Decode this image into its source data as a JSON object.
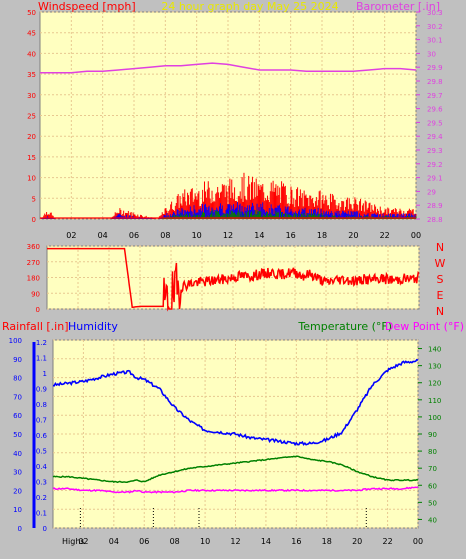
{
  "title": "24 hour graph day   May 25 2024",
  "colors": {
    "background": "#c0c0c0",
    "plot_bg": "#ffffc0",
    "grid": "#e8c890",
    "wind": "#ff0000",
    "gust": "#0000ff",
    "avg": "#008000",
    "baro": "#e040e0",
    "humidity": "#0000ff",
    "temp": "#008000",
    "dew": "#ff00ff",
    "rain": "#ff0000"
  },
  "chart_data": [
    {
      "type": "bar",
      "id": "wind-baro",
      "left_axis_label": "Windspeed [mph]",
      "right_axis_label": "Barometer [.in]",
      "ylim_left": [
        0,
        50
      ],
      "left_ticks": [
        0,
        5,
        10,
        15,
        20,
        25,
        30,
        35,
        40,
        45,
        50
      ],
      "ylim_right": [
        28.8,
        30.3
      ],
      "right_ticks": [
        "28.8",
        "28.9",
        "29",
        "29.1",
        "29.2",
        "29.3",
        "29.4",
        "29.5",
        "29.6",
        "29.7",
        "29.8",
        "29.9",
        "30",
        "30.1",
        "30.2",
        "30.3"
      ],
      "x_ticks": [
        "02",
        "04",
        "06",
        "08",
        "10",
        "12",
        "14",
        "16",
        "18",
        "20",
        "22",
        "00"
      ],
      "barometer": {
        "x": [
          0,
          1,
          2,
          3,
          4,
          5,
          6,
          7,
          8,
          9,
          10,
          11,
          12,
          13,
          14,
          15,
          16,
          17,
          18,
          19,
          20,
          21,
          22,
          23,
          24
        ],
        "values": [
          29.86,
          29.86,
          29.86,
          29.87,
          29.87,
          29.88,
          29.89,
          29.9,
          29.91,
          29.91,
          29.92,
          29.93,
          29.92,
          29.9,
          29.88,
          29.88,
          29.88,
          29.87,
          29.87,
          29.87,
          29.87,
          29.88,
          29.89,
          29.89,
          29.88
        ]
      },
      "wind_envelope": {
        "hours": [
          0,
          0.5,
          1,
          4.5,
          5,
          7.5,
          8,
          9,
          10,
          11,
          12,
          13,
          14,
          15,
          16,
          17,
          18,
          19,
          20,
          21,
          22,
          23,
          24
        ],
        "wind": [
          0,
          2,
          0,
          0,
          2,
          0,
          2,
          5,
          6,
          7,
          7,
          8,
          7,
          7,
          6,
          5,
          5,
          4,
          4,
          3,
          2,
          2,
          2
        ],
        "gust": [
          0,
          0.5,
          0,
          0,
          1,
          0,
          1,
          2,
          2.5,
          3,
          3,
          3,
          3,
          2.5,
          2.5,
          2,
          2,
          1.5,
          1.5,
          1,
          1,
          1,
          1
        ],
        "avg": [
          0,
          0,
          0,
          0,
          0,
          0,
          0.5,
          1,
          1,
          1.5,
          1.5,
          1.5,
          1.5,
          1.5,
          1,
          1,
          1,
          0.5,
          0.5,
          0.5,
          0.5,
          0.5,
          0.5
        ]
      }
    },
    {
      "type": "line",
      "id": "wind-direction",
      "ylim": [
        0,
        360
      ],
      "y_ticks": [
        0,
        90,
        180,
        270,
        360
      ],
      "compass_labels": [
        "N",
        "W",
        "S",
        "E",
        "N"
      ],
      "x": [
        0,
        0.5,
        1,
        1.5,
        2,
        2.5,
        3,
        3.5,
        4,
        4.5,
        5,
        5.5,
        6,
        6.5,
        7,
        7.5,
        8,
        8.5,
        9,
        9.5,
        10,
        10.5,
        11,
        11.5,
        12,
        12.5,
        13,
        13.5,
        14,
        14.5,
        15,
        15.5,
        16,
        16.5,
        17,
        17.5,
        18,
        18.5,
        19,
        19.5,
        20,
        20.5,
        21,
        21.5,
        22,
        22.5,
        23,
        23.5,
        24
      ],
      "values": [
        345,
        345,
        345,
        345,
        345,
        345,
        345,
        345,
        345,
        345,
        345,
        10,
        15,
        15,
        15,
        15,
        40,
        120,
        140,
        150,
        155,
        160,
        165,
        170,
        180,
        190,
        185,
        195,
        200,
        210,
        195,
        205,
        210,
        190,
        200,
        175,
        150,
        165,
        170,
        165,
        160,
        170,
        165,
        175,
        170,
        165,
        175,
        170,
        180
      ]
    },
    {
      "type": "line",
      "id": "rain-hum-temp",
      "left_label_rain": "Rainfall [.in]",
      "left_label_humidity": "Humidity",
      "right_label_temp": "Temperature (°F)",
      "right_label_dew": "Dew Point (°F)",
      "humidity_ticks": [
        0,
        10,
        20,
        30,
        40,
        50,
        60,
        70,
        80,
        90,
        100
      ],
      "rain_ticks": [
        "0",
        "0.1",
        "0.2",
        "0.3",
        "0.4",
        "0.5",
        "0.6",
        "0.7",
        "0.8",
        "0.9",
        "1",
        "1.1",
        "1.2"
      ],
      "temp_ticks": [
        40,
        50,
        60,
        70,
        80,
        90,
        100,
        110,
        120,
        130,
        140
      ],
      "ylim_humidity": [
        0,
        100
      ],
      "ylim_temp": [
        35,
        145
      ],
      "x_ticks": [
        "02",
        "04",
        "06",
        "08",
        "10",
        "12",
        "14",
        "16",
        "18",
        "20",
        "22",
        "00"
      ],
      "x": [
        0,
        1,
        2,
        3,
        4,
        5,
        5.5,
        6,
        7,
        8,
        9,
        10,
        11,
        12,
        13,
        14,
        15,
        16,
        17,
        18,
        19,
        20,
        21,
        22,
        23,
        24
      ],
      "humidity": [
        76,
        77,
        78,
        80,
        82,
        83,
        80,
        79,
        74,
        64,
        57,
        52,
        51,
        50,
        48,
        47,
        46,
        45,
        45,
        47,
        51,
        63,
        76,
        84,
        88,
        89
      ],
      "temperature": [
        65,
        65,
        64,
        63,
        62,
        62,
        63,
        62,
        66,
        68,
        70,
        71,
        72,
        73,
        74,
        75,
        76,
        77,
        75,
        74,
        72,
        68,
        65,
        63,
        63,
        63
      ],
      "dew_point": [
        58,
        58,
        57,
        57,
        56,
        56,
        57,
        56,
        56,
        56,
        57,
        57,
        57,
        57,
        57,
        57,
        57,
        57,
        57,
        57,
        57,
        57,
        58,
        58,
        58,
        59
      ],
      "rain_total": 0,
      "marker_label": "Highs"
    }
  ]
}
